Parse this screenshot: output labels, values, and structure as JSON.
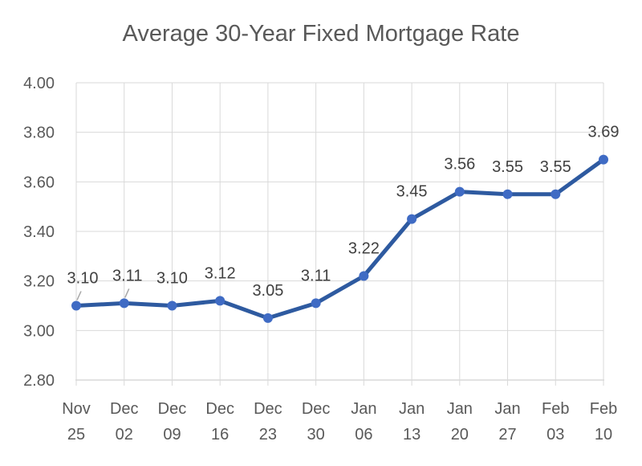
{
  "window": {
    "background_color": "#ffffff"
  },
  "chart_data": {
    "type": "line",
    "title": "Average 30-Year Fixed Mortgage Rate",
    "categories": [
      {
        "month": "Nov",
        "day": "25"
      },
      {
        "month": "Dec",
        "day": "02"
      },
      {
        "month": "Dec",
        "day": "09"
      },
      {
        "month": "Dec",
        "day": "16"
      },
      {
        "month": "Dec",
        "day": "23"
      },
      {
        "month": "Dec",
        "day": "30"
      },
      {
        "month": "Jan",
        "day": "06"
      },
      {
        "month": "Jan",
        "day": "13"
      },
      {
        "month": "Jan",
        "day": "20"
      },
      {
        "month": "Jan",
        "day": "27"
      },
      {
        "month": "Feb",
        "day": "03"
      },
      {
        "month": "Feb",
        "day": "10"
      }
    ],
    "series": [
      {
        "name": "Average 30-Year Fixed Mortgage Rate",
        "values": [
          3.1,
          3.11,
          3.1,
          3.12,
          3.05,
          3.11,
          3.22,
          3.45,
          3.56,
          3.55,
          3.55,
          3.69
        ]
      }
    ],
    "data_labels": [
      "3.10",
      "3.11",
      "3.10",
      "3.12",
      "3.05",
      "3.11",
      "3.22",
      "3.45",
      "3.56",
      "3.55",
      "3.55",
      "3.69"
    ],
    "data_label_dx": [
      8,
      4,
      0,
      0,
      0,
      0,
      0,
      0,
      0,
      0,
      0,
      0
    ],
    "leader_line_indices": [
      0,
      1
    ],
    "xlabel": "",
    "ylabel": "",
    "ylim": [
      2.8,
      4.0
    ],
    "y_ticks": [
      "4.00",
      "3.80",
      "3.60",
      "3.40",
      "3.20",
      "3.00",
      "2.80"
    ],
    "grid": "horizontal-and-vertical",
    "legend": "none",
    "colors": {
      "line": "#2e5aa0",
      "marker": "#3f6bc4",
      "grid": "#d9d9d9",
      "axis_line": "#d9d9d9",
      "title_text": "#595959",
      "axis_text": "#595959",
      "data_label_text": "#404040",
      "leader_line": "#a6a6a6"
    }
  }
}
